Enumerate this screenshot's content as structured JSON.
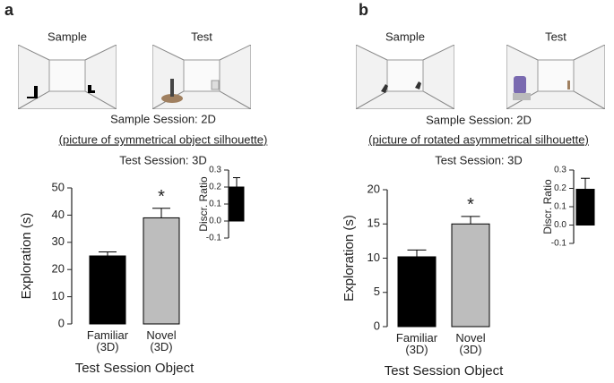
{
  "panels": [
    {
      "label": "a",
      "sample_label": "Sample",
      "test_label": "Test",
      "session_lines": [
        "Sample Session: 2D",
        "(picture of symmetrical object silhouette)",
        "Test Session: 3D"
      ]
    },
    {
      "label": "b",
      "sample_label": "Sample",
      "test_label": "Test",
      "session_lines": [
        "Sample Session: 2D",
        "(picture of rotated asymmetrical silhouette)",
        "Test Session: 3D"
      ]
    }
  ],
  "chart_data": [
    {
      "type": "bar",
      "categories": [
        "Familiar\n(3D)",
        "Novel\n(3D)"
      ],
      "values": [
        25,
        39
      ],
      "errors": [
        1.5,
        3.5
      ],
      "colors": [
        "#000000",
        "#bdbdbd"
      ],
      "xlabel": "Test Session Object",
      "ylabel": "Exploration (s)",
      "ylim": [
        0,
        50
      ],
      "yticks": [
        0,
        10,
        20,
        30,
        40,
        50
      ],
      "annotations": [
        {
          "text": "*",
          "category": "Novel\n(3D)"
        }
      ]
    },
    {
      "type": "bar",
      "categories": [
        null
      ],
      "values": [
        0.2
      ],
      "errors": [
        0.055
      ],
      "colors": [
        "#000000"
      ],
      "ylabel": "Discr. Ratio",
      "ylim": [
        -0.1,
        0.3
      ],
      "yticks": [
        -0.1,
        {
          "value": 0,
          "label": "0.0"
        },
        0.1,
        0.2,
        0.3
      ]
    },
    {
      "type": "bar",
      "categories": [
        "Familiar\n(3D)",
        "Novel\n(3D)"
      ],
      "values": [
        10.2,
        15
      ],
      "errors": [
        1.0,
        1.1
      ],
      "colors": [
        "#000000",
        "#bdbdbd"
      ],
      "xlabel": "Test Session Object",
      "ylabel": "Exploration (s)",
      "ylim": [
        0,
        20
      ],
      "yticks": [
        0,
        5,
        10,
        15,
        20
      ],
      "annotations": [
        {
          "text": "*",
          "category": "Novel\n(3D)"
        }
      ]
    },
    {
      "type": "bar",
      "categories": [
        null
      ],
      "values": [
        0.195
      ],
      "errors": [
        0.06
      ],
      "colors": [
        "#000000"
      ],
      "ylabel": "Discr. Ratio",
      "ylim": [
        -0.1,
        0.3
      ],
      "yticks": [
        -0.1,
        {
          "value": 0,
          "label": "0.0"
        },
        0.1,
        0.2,
        0.3
      ]
    }
  ]
}
